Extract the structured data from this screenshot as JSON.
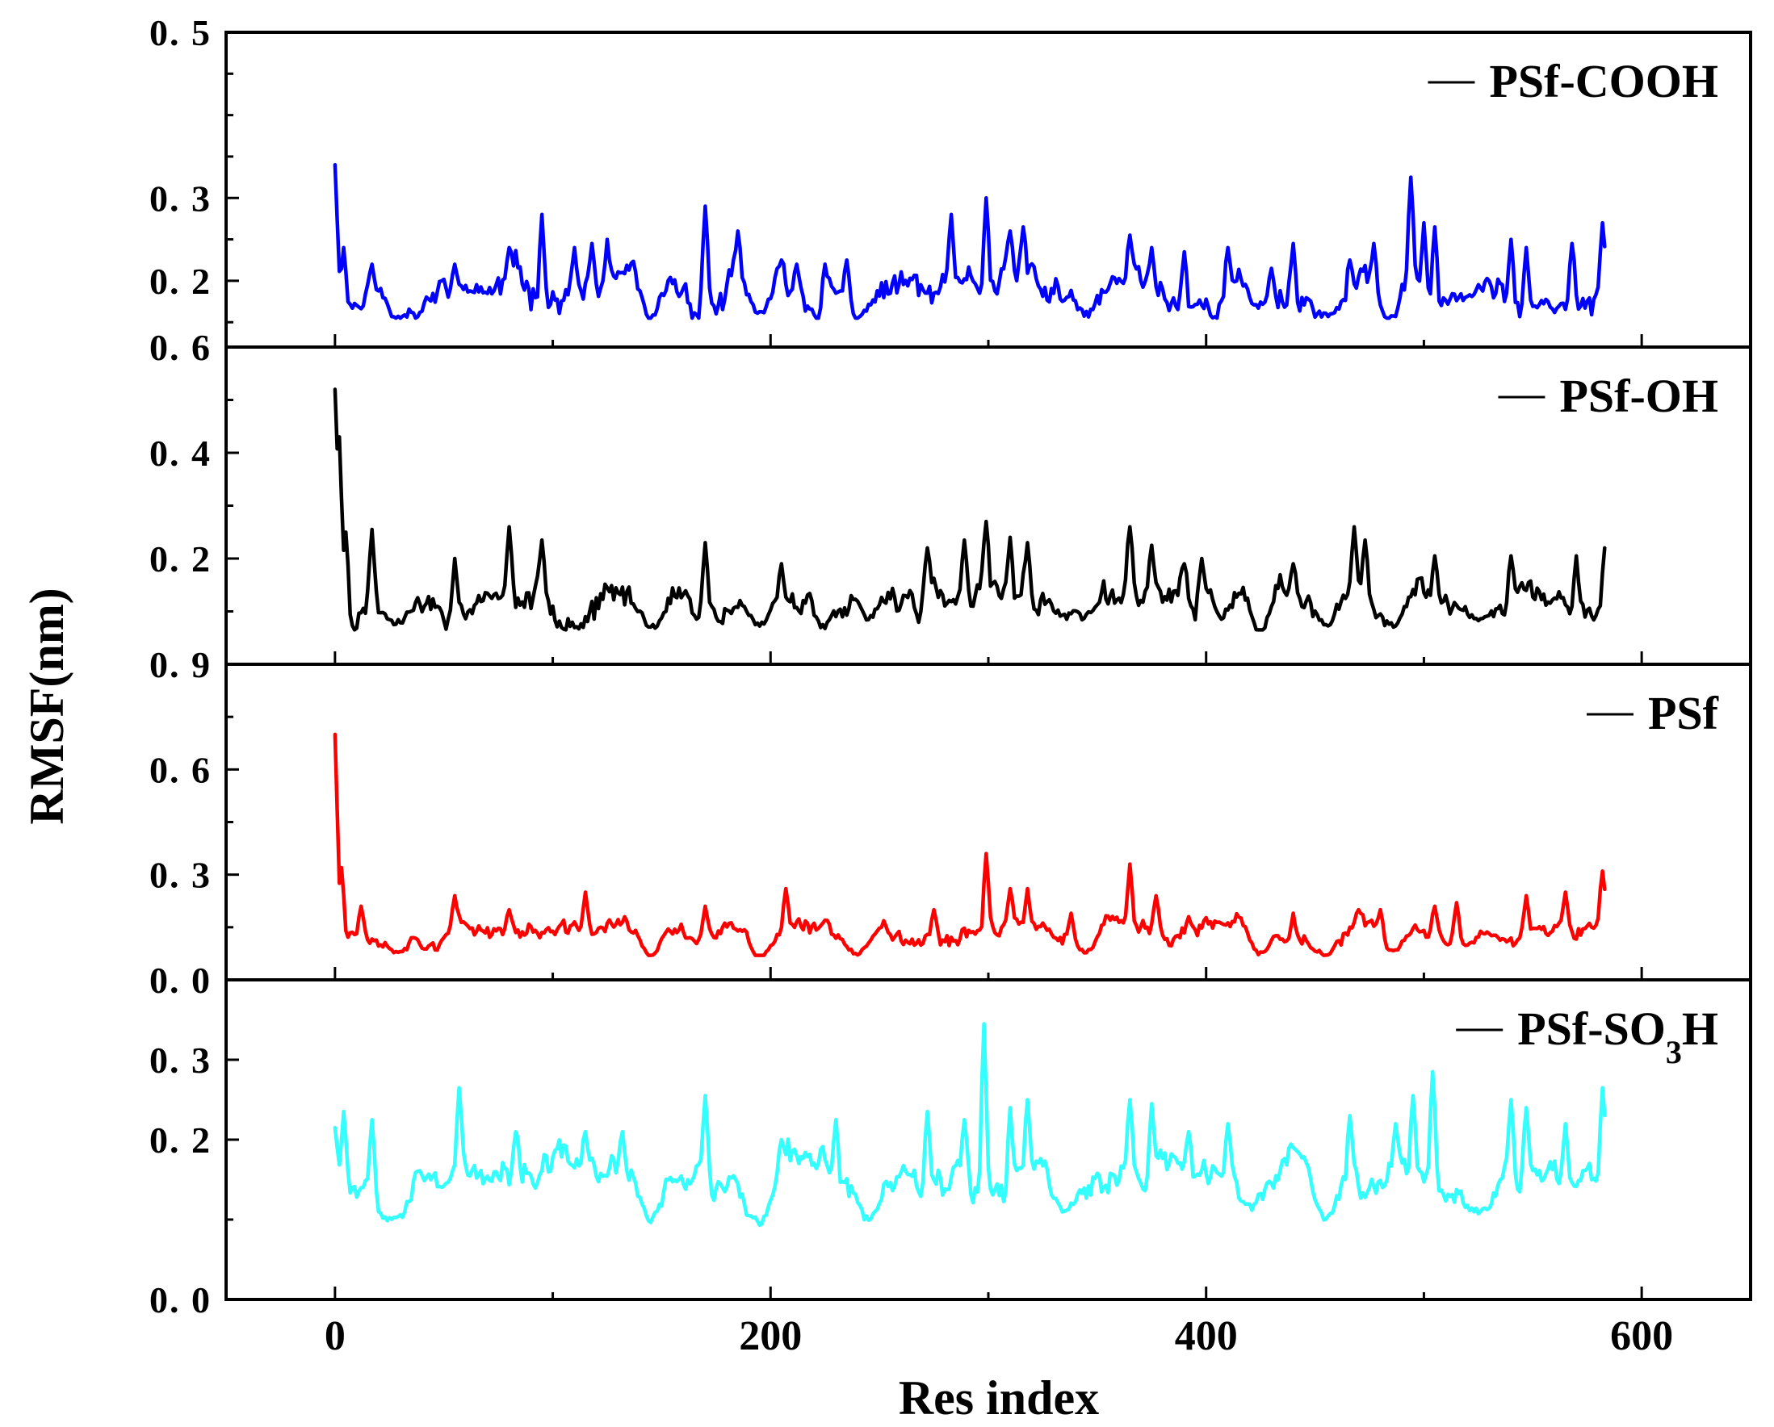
{
  "chart_data": {
    "type": "line",
    "layout": "stacked-panels-shared-x",
    "xlabel": "Res index",
    "ylabel": "RMSF(nm)",
    "xlim": [
      -50,
      650
    ],
    "xticks": [
      0,
      200,
      400,
      600
    ],
    "x_tick_labels": [
      "0",
      "200",
      "400",
      "600"
    ],
    "x_range": [
      0,
      583
    ],
    "panels": [
      {
        "name": "PSf-COOH",
        "legend": "PSf-COOH",
        "color": "#0000ff",
        "ylim": [
          0.12,
          0.5
        ],
        "yticks": [
          0.2,
          0.3,
          0.5
        ],
        "y_tick_labels": [
          "0. 2",
          "0. 3",
          "0. 5"
        ],
        "seed": 11,
        "base": 0.185,
        "amp": 0.03,
        "min": 0.155,
        "spikes": [
          [
            0,
            0.34
          ],
          [
            4,
            0.24
          ],
          [
            17,
            0.22
          ],
          [
            55,
            0.22
          ],
          [
            80,
            0.24
          ],
          [
            95,
            0.28
          ],
          [
            110,
            0.24
          ],
          [
            118,
            0.245
          ],
          [
            125,
            0.25
          ],
          [
            170,
            0.29
          ],
          [
            185,
            0.26
          ],
          [
            205,
            0.225
          ],
          [
            212,
            0.22
          ],
          [
            225,
            0.22
          ],
          [
            235,
            0.225
          ],
          [
            283,
            0.28
          ],
          [
            299,
            0.3
          ],
          [
            310,
            0.26
          ],
          [
            316,
            0.265
          ],
          [
            365,
            0.255
          ],
          [
            375,
            0.24
          ],
          [
            390,
            0.235
          ],
          [
            410,
            0.24
          ],
          [
            430,
            0.215
          ],
          [
            440,
            0.245
          ],
          [
            466,
            0.225
          ],
          [
            477,
            0.245
          ],
          [
            494,
            0.325
          ],
          [
            500,
            0.27
          ],
          [
            505,
            0.265
          ],
          [
            540,
            0.25
          ],
          [
            547,
            0.24
          ],
          [
            568,
            0.245
          ],
          [
            582,
            0.27
          ]
        ],
        "dips": [
          [
            28,
            0.155
          ],
          [
            60,
            0.19
          ],
          [
            145,
            0.155
          ],
          [
            195,
            0.16
          ],
          [
            240,
            0.155
          ],
          [
            345,
            0.16
          ],
          [
            425,
            0.17
          ],
          [
            455,
            0.158
          ],
          [
            484,
            0.155
          ],
          [
            520,
            0.18
          ],
          [
            555,
            0.175
          ]
        ]
      },
      {
        "name": "PSf-OH",
        "legend": "PSf-OH",
        "color": "#000000",
        "ylim": [
          0.0,
          0.6
        ],
        "yticks": [
          0.2,
          0.4,
          0.6
        ],
        "y_tick_labels": [
          "0. 2",
          "0. 4",
          "0. 6"
        ],
        "seed": 23,
        "base": 0.12,
        "amp": 0.04,
        "min": 0.065,
        "spikes": [
          [
            0,
            0.52
          ],
          [
            2,
            0.43
          ],
          [
            5,
            0.25
          ],
          [
            17,
            0.255
          ],
          [
            55,
            0.2
          ],
          [
            80,
            0.26
          ],
          [
            95,
            0.235
          ],
          [
            170,
            0.23
          ],
          [
            205,
            0.19
          ],
          [
            272,
            0.22
          ],
          [
            289,
            0.235
          ],
          [
            299,
            0.27
          ],
          [
            310,
            0.24
          ],
          [
            318,
            0.23
          ],
          [
            365,
            0.26
          ],
          [
            375,
            0.225
          ],
          [
            390,
            0.19
          ],
          [
            398,
            0.2
          ],
          [
            440,
            0.19
          ],
          [
            468,
            0.26
          ],
          [
            473,
            0.235
          ],
          [
            505,
            0.205
          ],
          [
            540,
            0.205
          ],
          [
            570,
            0.205
          ],
          [
            583,
            0.22
          ]
        ],
        "dips": [
          [
            28,
            0.08
          ],
          [
            75,
            0.13
          ],
          [
            145,
            0.07
          ],
          [
            195,
            0.075
          ],
          [
            245,
            0.085
          ],
          [
            335,
            0.09
          ],
          [
            425,
            0.06
          ],
          [
            455,
            0.075
          ],
          [
            485,
            0.075
          ],
          [
            525,
            0.085
          ]
        ]
      },
      {
        "name": "PSf",
        "legend": "PSf",
        "color": "#ff0000",
        "ylim": [
          0.0,
          0.9
        ],
        "yticks": [
          0.0,
          0.3,
          0.6,
          0.9
        ],
        "y_tick_labels": [
          "0. 0",
          "0. 3",
          "0. 6",
          "0. 9"
        ],
        "seed": 37,
        "base": 0.14,
        "amp": 0.035,
        "min": 0.07,
        "spikes": [
          [
            0,
            0.7
          ],
          [
            3,
            0.32
          ],
          [
            12,
            0.21
          ],
          [
            55,
            0.24
          ],
          [
            80,
            0.2
          ],
          [
            115,
            0.25
          ],
          [
            133,
            0.18
          ],
          [
            170,
            0.21
          ],
          [
            207,
            0.26
          ],
          [
            225,
            0.17
          ],
          [
            275,
            0.2
          ],
          [
            299,
            0.36
          ],
          [
            310,
            0.26
          ],
          [
            318,
            0.26
          ],
          [
            338,
            0.19
          ],
          [
            365,
            0.33
          ],
          [
            377,
            0.24
          ],
          [
            392,
            0.18
          ],
          [
            440,
            0.19
          ],
          [
            470,
            0.2
          ],
          [
            480,
            0.2
          ],
          [
            505,
            0.21
          ],
          [
            515,
            0.22
          ],
          [
            547,
            0.24
          ],
          [
            565,
            0.25
          ],
          [
            582,
            0.31
          ]
        ],
        "dips": [
          [
            28,
            0.08
          ],
          [
            145,
            0.07
          ],
          [
            195,
            0.06
          ],
          [
            240,
            0.075
          ],
          [
            345,
            0.08
          ],
          [
            425,
            0.075
          ],
          [
            455,
            0.07
          ],
          [
            485,
            0.08
          ],
          [
            520,
            0.1
          ]
        ]
      },
      {
        "name": "PSf-SO3H",
        "legend": "PSf-SO3H",
        "legend_base": "PSf-SO",
        "legend_sub": "3",
        "legend_tail": "H",
        "color": "#33ffff",
        "ylim": [
          0.0,
          0.4
        ],
        "yticks": [
          0.0,
          0.2,
          0.3
        ],
        "y_tick_labels": [
          "0. 0",
          "0. 2",
          "0. 3"
        ],
        "seed": 53,
        "base": 0.155,
        "amp": 0.03,
        "min": 0.08,
        "spikes": [
          [
            0,
            0.215
          ],
          [
            4,
            0.235
          ],
          [
            17,
            0.225
          ],
          [
            57,
            0.265
          ],
          [
            83,
            0.21
          ],
          [
            115,
            0.21
          ],
          [
            132,
            0.21
          ],
          [
            170,
            0.255
          ],
          [
            205,
            0.2
          ],
          [
            230,
            0.225
          ],
          [
            272,
            0.235
          ],
          [
            289,
            0.225
          ],
          [
            298,
            0.345
          ],
          [
            310,
            0.24
          ],
          [
            318,
            0.25
          ],
          [
            365,
            0.25
          ],
          [
            375,
            0.245
          ],
          [
            392,
            0.21
          ],
          [
            410,
            0.22
          ],
          [
            440,
            0.19
          ],
          [
            466,
            0.23
          ],
          [
            487,
            0.22
          ],
          [
            495,
            0.255
          ],
          [
            504,
            0.285
          ],
          [
            540,
            0.25
          ],
          [
            547,
            0.24
          ],
          [
            565,
            0.22
          ],
          [
            582,
            0.265
          ]
        ],
        "dips": [
          [
            28,
            0.1
          ],
          [
            145,
            0.1
          ],
          [
            195,
            0.095
          ],
          [
            245,
            0.1
          ],
          [
            335,
            0.11
          ],
          [
            420,
            0.115
          ],
          [
            455,
            0.1
          ],
          [
            525,
            0.11
          ]
        ]
      }
    ]
  }
}
